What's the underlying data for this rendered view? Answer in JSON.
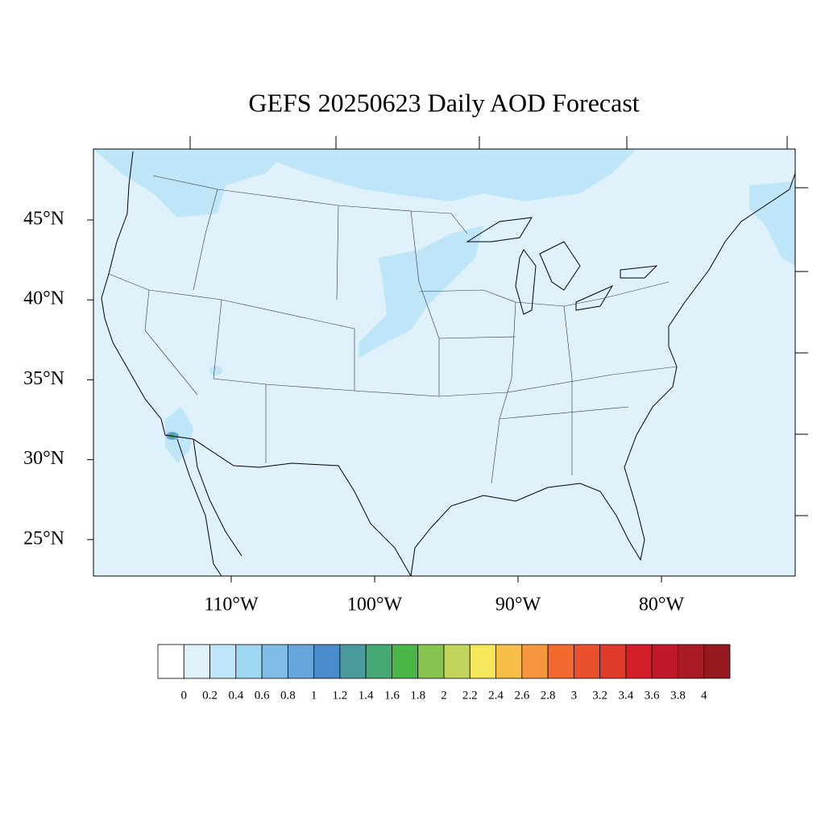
{
  "title": "GEFS 20250623 Daily AOD Forecast",
  "lat_labels": [
    "45°N",
    "40°N",
    "35°N",
    "30°N",
    "25°N"
  ],
  "lon_labels": [
    "110°W",
    "100°W",
    "90°W",
    "80°W"
  ],
  "colorbar": {
    "levels": [
      0,
      0.2,
      0.4,
      0.6,
      0.8,
      1,
      1.2,
      1.4,
      1.6,
      1.8,
      2,
      2.2,
      2.4,
      2.6,
      2.8,
      3,
      3.2,
      3.4,
      3.6,
      3.8,
      4
    ],
    "colors": [
      "#ffffff",
      "#dff2fb",
      "#bfe6f8",
      "#a0d8f4",
      "#80bde6",
      "#66a6dc",
      "#4a8ccb",
      "#4a9a9e",
      "#46a874",
      "#4bb648",
      "#86c451",
      "#c2d55a",
      "#f6e65b",
      "#f7bf4a",
      "#f5973f",
      "#f26a2e",
      "#e9502d",
      "#e03b2a",
      "#d41f2a",
      "#c0192a",
      "#aa1a25",
      "#941a1f"
    ]
  }
}
